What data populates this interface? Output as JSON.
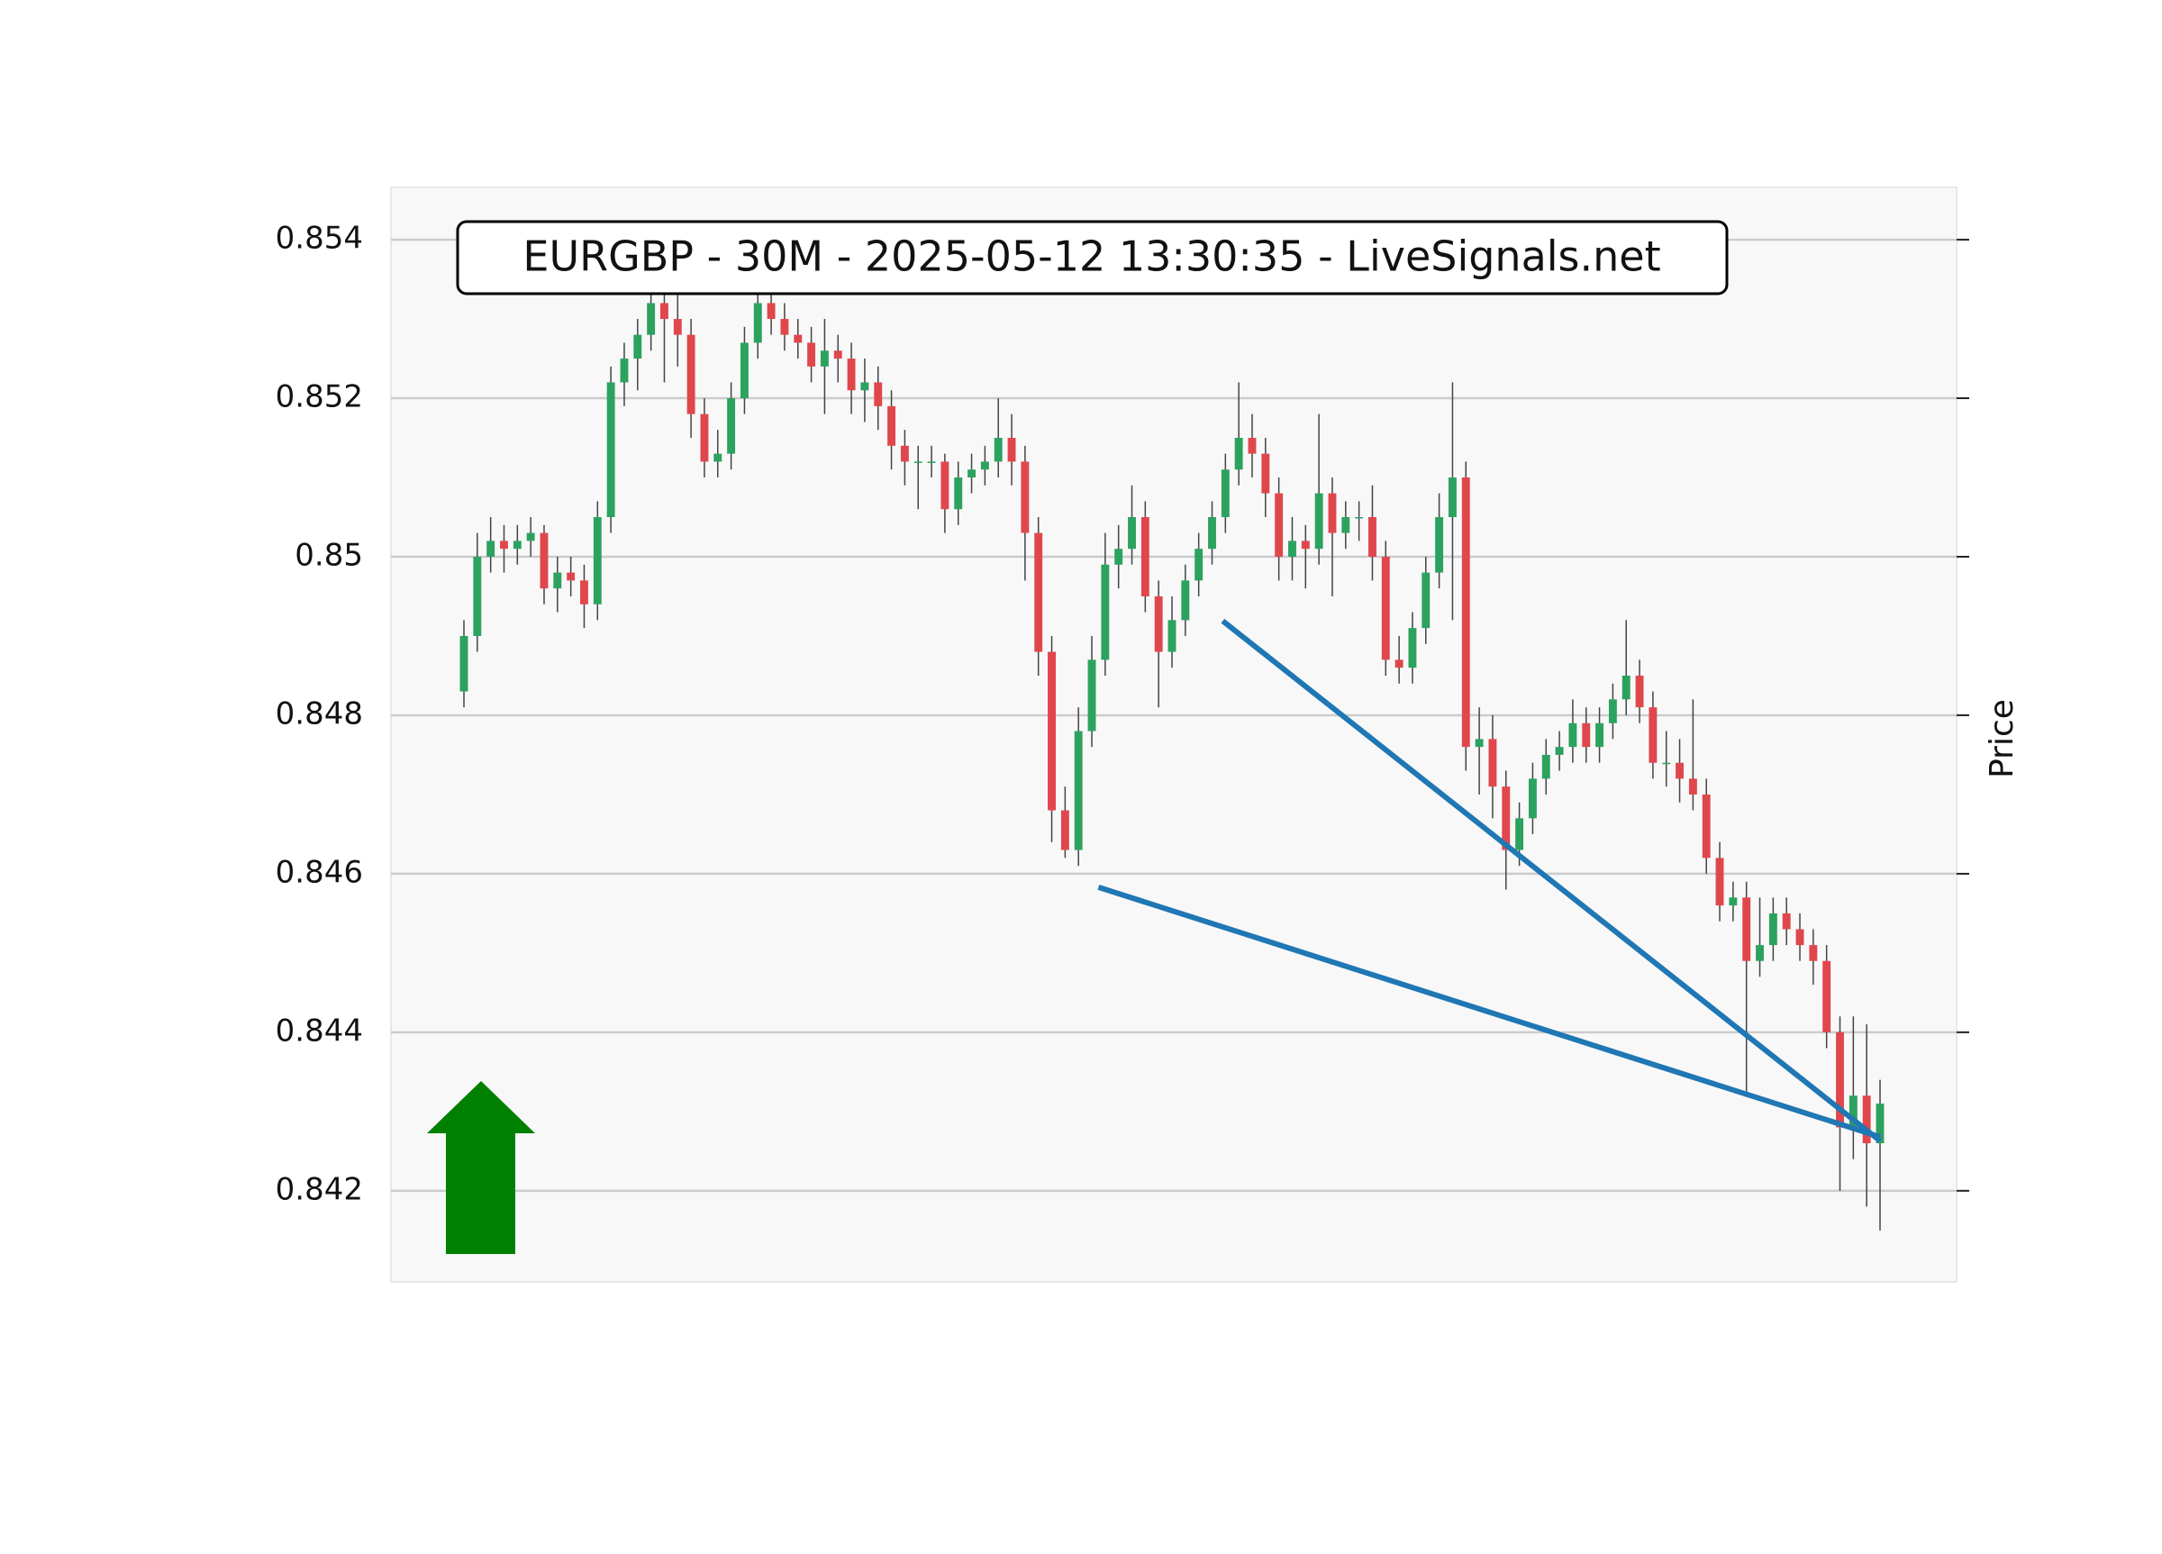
{
  "chart_data": {
    "type": "candlestick",
    "title": "EURGBP - 30M - 2025-05-12 13:30:35 - LiveSignals.net",
    "ylabel": "Price",
    "ylim": [
      0.84085,
      0.85466
    ],
    "yticks": [
      0.842,
      0.844,
      0.846,
      0.848,
      0.85,
      0.852,
      0.854
    ],
    "grid": true,
    "up_color": "#2ca25f",
    "down_color": "#e0474c",
    "wick_color": "#444444",
    "trend_color": "#1f77b4",
    "ohlc": [
      [
        0.8483,
        0.8492,
        0.8481,
        0.849
      ],
      [
        0.849,
        0.8503,
        0.8488,
        0.85
      ],
      [
        0.85,
        0.8505,
        0.8498,
        0.8502
      ],
      [
        0.8502,
        0.8504,
        0.8498,
        0.8501
      ],
      [
        0.8501,
        0.8504,
        0.8499,
        0.8502
      ],
      [
        0.8502,
        0.8505,
        0.85,
        0.8503
      ],
      [
        0.8503,
        0.8504,
        0.8494,
        0.8496
      ],
      [
        0.8496,
        0.85,
        0.8493,
        0.8498
      ],
      [
        0.8498,
        0.85,
        0.8495,
        0.8497
      ],
      [
        0.8497,
        0.8499,
        0.8491,
        0.8494
      ],
      [
        0.8494,
        0.8507,
        0.8492,
        0.8505
      ],
      [
        0.8505,
        0.8524,
        0.8503,
        0.8522
      ],
      [
        0.8522,
        0.8527,
        0.8519,
        0.8525
      ],
      [
        0.8525,
        0.853,
        0.8521,
        0.8528
      ],
      [
        0.8528,
        0.8536,
        0.8526,
        0.8532
      ],
      [
        0.8532,
        0.8535,
        0.8522,
        0.853
      ],
      [
        0.853,
        0.8533,
        0.8524,
        0.8528
      ],
      [
        0.8528,
        0.853,
        0.8515,
        0.8518
      ],
      [
        0.8518,
        0.852,
        0.851,
        0.8512
      ],
      [
        0.8512,
        0.8516,
        0.851,
        0.8513
      ],
      [
        0.8513,
        0.8522,
        0.8511,
        0.852
      ],
      [
        0.852,
        0.8529,
        0.8518,
        0.8527
      ],
      [
        0.8527,
        0.8534,
        0.8525,
        0.8532
      ],
      [
        0.8532,
        0.8534,
        0.8528,
        0.853
      ],
      [
        0.853,
        0.8532,
        0.8526,
        0.8528
      ],
      [
        0.8528,
        0.853,
        0.8525,
        0.8527
      ],
      [
        0.8527,
        0.8529,
        0.8522,
        0.8524
      ],
      [
        0.8524,
        0.853,
        0.8518,
        0.8526
      ],
      [
        0.8526,
        0.8528,
        0.8522,
        0.8525
      ],
      [
        0.8525,
        0.8527,
        0.8518,
        0.8521
      ],
      [
        0.8521,
        0.8525,
        0.8517,
        0.8522
      ],
      [
        0.8522,
        0.8524,
        0.8516,
        0.8519
      ],
      [
        0.8519,
        0.8521,
        0.8511,
        0.8514
      ],
      [
        0.8514,
        0.8516,
        0.8509,
        0.8512
      ],
      [
        0.8512,
        0.8514,
        0.8506,
        0.8512
      ],
      [
        0.8512,
        0.8514,
        0.851,
        0.8512
      ],
      [
        0.8512,
        0.8513,
        0.8503,
        0.8506
      ],
      [
        0.8506,
        0.8512,
        0.8504,
        0.851
      ],
      [
        0.851,
        0.8513,
        0.8508,
        0.8511
      ],
      [
        0.8511,
        0.8514,
        0.8509,
        0.8512
      ],
      [
        0.8512,
        0.852,
        0.851,
        0.8515
      ],
      [
        0.8515,
        0.8518,
        0.8509,
        0.8512
      ],
      [
        0.8512,
        0.8514,
        0.8497,
        0.8503
      ],
      [
        0.8503,
        0.8505,
        0.8485,
        0.8488
      ],
      [
        0.8488,
        0.849,
        0.8464,
        0.8468
      ],
      [
        0.8468,
        0.8471,
        0.8462,
        0.8463
      ],
      [
        0.8463,
        0.8481,
        0.8461,
        0.8478
      ],
      [
        0.8478,
        0.849,
        0.8476,
        0.8487
      ],
      [
        0.8487,
        0.8503,
        0.8485,
        0.8499
      ],
      [
        0.8499,
        0.8504,
        0.8496,
        0.8501
      ],
      [
        0.8501,
        0.8509,
        0.8499,
        0.8505
      ],
      [
        0.8505,
        0.8507,
        0.8493,
        0.8495
      ],
      [
        0.8495,
        0.8497,
        0.8481,
        0.8488
      ],
      [
        0.8488,
        0.8495,
        0.8486,
        0.8492
      ],
      [
        0.8492,
        0.8499,
        0.849,
        0.8497
      ],
      [
        0.8497,
        0.8503,
        0.8495,
        0.8501
      ],
      [
        0.8501,
        0.8507,
        0.8499,
        0.8505
      ],
      [
        0.8505,
        0.8513,
        0.8503,
        0.8511
      ],
      [
        0.8511,
        0.8522,
        0.8509,
        0.8515
      ],
      [
        0.8515,
        0.8518,
        0.851,
        0.8513
      ],
      [
        0.8513,
        0.8515,
        0.8505,
        0.8508
      ],
      [
        0.8508,
        0.851,
        0.8497,
        0.85
      ],
      [
        0.85,
        0.8505,
        0.8497,
        0.8502
      ],
      [
        0.8502,
        0.8504,
        0.8496,
        0.8501
      ],
      [
        0.8501,
        0.8518,
        0.8499,
        0.8508
      ],
      [
        0.8508,
        0.851,
        0.8495,
        0.8503
      ],
      [
        0.8503,
        0.8507,
        0.8501,
        0.8505
      ],
      [
        0.8505,
        0.8507,
        0.8502,
        0.8505
      ],
      [
        0.8505,
        0.8509,
        0.8497,
        0.85
      ],
      [
        0.85,
        0.8502,
        0.8485,
        0.8487
      ],
      [
        0.8487,
        0.849,
        0.8484,
        0.8486
      ],
      [
        0.8486,
        0.8493,
        0.8484,
        0.8491
      ],
      [
        0.8491,
        0.85,
        0.8489,
        0.8498
      ],
      [
        0.8498,
        0.8508,
        0.8496,
        0.8505
      ],
      [
        0.8505,
        0.8522,
        0.8492,
        0.851
      ],
      [
        0.851,
        0.8512,
        0.8473,
        0.8476
      ],
      [
        0.8476,
        0.8481,
        0.847,
        0.8477
      ],
      [
        0.8477,
        0.848,
        0.8467,
        0.8471
      ],
      [
        0.8471,
        0.8473,
        0.8458,
        0.8463
      ],
      [
        0.8463,
        0.8469,
        0.8461,
        0.8467
      ],
      [
        0.8467,
        0.8474,
        0.8465,
        0.8472
      ],
      [
        0.8472,
        0.8477,
        0.847,
        0.8475
      ],
      [
        0.8475,
        0.8478,
        0.8473,
        0.8476
      ],
      [
        0.8476,
        0.8482,
        0.8474,
        0.8479
      ],
      [
        0.8479,
        0.8481,
        0.8474,
        0.8476
      ],
      [
        0.8476,
        0.8481,
        0.8474,
        0.8479
      ],
      [
        0.8479,
        0.8484,
        0.8477,
        0.8482
      ],
      [
        0.8482,
        0.8492,
        0.848,
        0.8485
      ],
      [
        0.8485,
        0.8487,
        0.8479,
        0.8481
      ],
      [
        0.8481,
        0.8483,
        0.8472,
        0.8474
      ],
      [
        0.8474,
        0.8478,
        0.8471,
        0.8474
      ],
      [
        0.8474,
        0.8477,
        0.8469,
        0.8472
      ],
      [
        0.8472,
        0.8482,
        0.8468,
        0.847
      ],
      [
        0.847,
        0.8472,
        0.846,
        0.8462
      ],
      [
        0.8462,
        0.8464,
        0.8454,
        0.8456
      ],
      [
        0.8456,
        0.8459,
        0.8454,
        0.8457
      ],
      [
        0.8457,
        0.8459,
        0.8432,
        0.8449
      ],
      [
        0.8449,
        0.8457,
        0.8447,
        0.8451
      ],
      [
        0.8451,
        0.8457,
        0.8449,
        0.8455
      ],
      [
        0.8455,
        0.8457,
        0.8451,
        0.8453
      ],
      [
        0.8453,
        0.8455,
        0.8449,
        0.8451
      ],
      [
        0.8451,
        0.8453,
        0.8446,
        0.8449
      ],
      [
        0.8449,
        0.8451,
        0.8438,
        0.844
      ],
      [
        0.844,
        0.8442,
        0.842,
        0.8428
      ],
      [
        0.8428,
        0.8442,
        0.8424,
        0.8432
      ],
      [
        0.8432,
        0.8441,
        0.8418,
        0.8426
      ],
      [
        0.8426,
        0.8434,
        0.8415,
        0.8431
      ]
    ],
    "trendlines": [
      {
        "x": [
          56.8,
          106
        ],
        "y": [
          0.84919,
          0.84263
        ]
      },
      {
        "x": [
          47.5,
          106
        ],
        "y": [
          0.84583,
          0.84268
        ]
      }
    ]
  }
}
